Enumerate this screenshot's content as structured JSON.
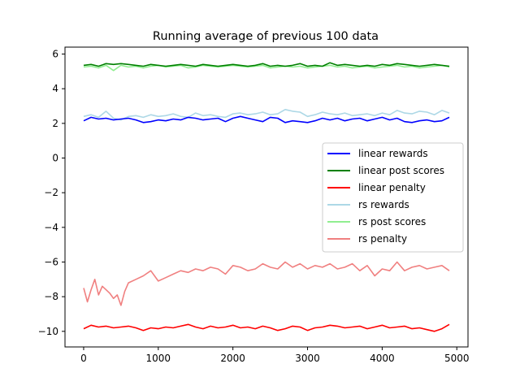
{
  "chart_data": {
    "type": "line",
    "title": "Running average of previous 100 data",
    "xlabel": "",
    "ylabel": "",
    "xlim": [
      -250,
      5150
    ],
    "ylim": [
      -10.9,
      6.4
    ],
    "xticks": [
      0,
      1000,
      2000,
      3000,
      4000,
      5000
    ],
    "yticks": [
      -10,
      -8,
      -6,
      -4,
      -2,
      0,
      2,
      4,
      6
    ],
    "grid": false,
    "legend_position": "center-right",
    "series": [
      {
        "name": "linear rewards",
        "color": "#0000ff",
        "x": [
          0,
          100,
          200,
          300,
          400,
          500,
          600,
          700,
          800,
          900,
          1000,
          1100,
          1200,
          1300,
          1400,
          1500,
          1600,
          1700,
          1800,
          1900,
          2000,
          2100,
          2200,
          2300,
          2400,
          2500,
          2600,
          2700,
          2800,
          2900,
          3000,
          3100,
          3200,
          3300,
          3400,
          3500,
          3600,
          3700,
          3800,
          3900,
          4000,
          4100,
          4200,
          4300,
          4400,
          4500,
          4600,
          4700,
          4800,
          4900
        ],
        "values": [
          2.15,
          2.35,
          2.25,
          2.3,
          2.2,
          2.25,
          2.3,
          2.2,
          2.05,
          2.1,
          2.2,
          2.15,
          2.25,
          2.2,
          2.35,
          2.3,
          2.2,
          2.25,
          2.3,
          2.1,
          2.3,
          2.4,
          2.3,
          2.2,
          2.1,
          2.35,
          2.3,
          2.05,
          2.15,
          2.1,
          2.05,
          2.15,
          2.3,
          2.2,
          2.3,
          2.15,
          2.25,
          2.3,
          2.15,
          2.25,
          2.35,
          2.2,
          2.3,
          2.1,
          2.05,
          2.15,
          2.2,
          2.1,
          2.15,
          2.35
        ]
      },
      {
        "name": "linear post scores",
        "color": "#008000",
        "x": [
          0,
          100,
          200,
          300,
          400,
          500,
          600,
          700,
          800,
          900,
          1000,
          1100,
          1200,
          1300,
          1400,
          1500,
          1600,
          1700,
          1800,
          1900,
          2000,
          2100,
          2200,
          2300,
          2400,
          2500,
          2600,
          2700,
          2800,
          2900,
          3000,
          3100,
          3200,
          3300,
          3400,
          3500,
          3600,
          3700,
          3800,
          3900,
          4000,
          4100,
          4200,
          4300,
          4400,
          4500,
          4600,
          4700,
          4800,
          4900
        ],
        "values": [
          5.35,
          5.4,
          5.3,
          5.45,
          5.4,
          5.45,
          5.4,
          5.35,
          5.3,
          5.4,
          5.35,
          5.3,
          5.35,
          5.4,
          5.35,
          5.3,
          5.4,
          5.35,
          5.3,
          5.35,
          5.4,
          5.35,
          5.3,
          5.35,
          5.45,
          5.3,
          5.35,
          5.3,
          5.35,
          5.45,
          5.3,
          5.35,
          5.3,
          5.5,
          5.35,
          5.4,
          5.35,
          5.3,
          5.35,
          5.3,
          5.4,
          5.35,
          5.45,
          5.4,
          5.35,
          5.3,
          5.35,
          5.4,
          5.35,
          5.3
        ]
      },
      {
        "name": "linear penalty",
        "color": "#ff0000",
        "x": [
          0,
          100,
          200,
          300,
          400,
          500,
          600,
          700,
          800,
          900,
          1000,
          1100,
          1200,
          1300,
          1400,
          1500,
          1600,
          1700,
          1800,
          1900,
          2000,
          2100,
          2200,
          2300,
          2400,
          2500,
          2600,
          2700,
          2800,
          2900,
          3000,
          3100,
          3200,
          3300,
          3400,
          3500,
          3600,
          3700,
          3800,
          3900,
          4000,
          4100,
          4200,
          4300,
          4400,
          4500,
          4600,
          4700,
          4800,
          4900
        ],
        "values": [
          -9.85,
          -9.65,
          -9.75,
          -9.7,
          -9.8,
          -9.75,
          -9.7,
          -9.8,
          -9.95,
          -9.8,
          -9.85,
          -9.75,
          -9.8,
          -9.7,
          -9.6,
          -9.75,
          -9.85,
          -9.7,
          -9.8,
          -9.75,
          -9.65,
          -9.8,
          -9.75,
          -9.85,
          -9.7,
          -9.8,
          -9.95,
          -9.85,
          -9.7,
          -9.75,
          -9.95,
          -9.8,
          -9.75,
          -9.65,
          -9.7,
          -9.8,
          -9.75,
          -9.7,
          -9.85,
          -9.75,
          -9.65,
          -9.8,
          -9.75,
          -9.7,
          -9.85,
          -9.8,
          -9.9,
          -10.0,
          -9.85,
          -9.6
        ]
      },
      {
        "name": "rs rewards",
        "color": "#add8e6",
        "x": [
          0,
          100,
          200,
          300,
          400,
          500,
          600,
          700,
          800,
          900,
          1000,
          1100,
          1200,
          1300,
          1400,
          1500,
          1600,
          1700,
          1800,
          1900,
          2000,
          2100,
          2200,
          2300,
          2400,
          2500,
          2600,
          2700,
          2800,
          2900,
          3000,
          3100,
          3200,
          3300,
          3400,
          3500,
          3600,
          3700,
          3800,
          3900,
          4000,
          4100,
          4200,
          4300,
          4400,
          4500,
          4600,
          4700,
          4800,
          4900
        ],
        "values": [
          2.4,
          2.5,
          2.35,
          2.7,
          2.3,
          2.2,
          2.4,
          2.45,
          2.35,
          2.5,
          2.4,
          2.45,
          2.55,
          2.4,
          2.35,
          2.6,
          2.45,
          2.5,
          2.4,
          2.35,
          2.55,
          2.6,
          2.5,
          2.55,
          2.65,
          2.5,
          2.55,
          2.8,
          2.7,
          2.65,
          2.4,
          2.5,
          2.65,
          2.55,
          2.5,
          2.6,
          2.45,
          2.5,
          2.55,
          2.45,
          2.6,
          2.5,
          2.75,
          2.6,
          2.55,
          2.7,
          2.65,
          2.5,
          2.75,
          2.6
        ]
      },
      {
        "name": "rs post scores",
        "color": "#90ee90",
        "x": [
          0,
          100,
          200,
          300,
          400,
          500,
          600,
          700,
          800,
          900,
          1000,
          1100,
          1200,
          1300,
          1400,
          1500,
          1600,
          1700,
          1800,
          1900,
          2000,
          2100,
          2200,
          2300,
          2400,
          2500,
          2600,
          2700,
          2800,
          2900,
          3000,
          3100,
          3200,
          3300,
          3400,
          3500,
          3600,
          3700,
          3800,
          3900,
          4000,
          4100,
          4200,
          4300,
          4400,
          4500,
          4600,
          4700,
          4800,
          4900
        ],
        "values": [
          5.25,
          5.3,
          5.2,
          5.35,
          5.05,
          5.35,
          5.25,
          5.3,
          5.2,
          5.3,
          5.35,
          5.25,
          5.3,
          5.35,
          5.2,
          5.25,
          5.35,
          5.3,
          5.25,
          5.3,
          5.35,
          5.3,
          5.25,
          5.3,
          5.35,
          5.2,
          5.25,
          5.3,
          5.25,
          5.3,
          5.2,
          5.25,
          5.3,
          5.35,
          5.25,
          5.3,
          5.2,
          5.25,
          5.3,
          5.2,
          5.25,
          5.3,
          5.35,
          5.25,
          5.3,
          5.2,
          5.25,
          5.3,
          5.35,
          5.25
        ]
      },
      {
        "name": "rs penalty",
        "color": "#f08080",
        "x": [
          0,
          50,
          100,
          150,
          200,
          250,
          300,
          350,
          400,
          450,
          500,
          550,
          600,
          700,
          800,
          900,
          1000,
          1100,
          1200,
          1300,
          1400,
          1500,
          1600,
          1700,
          1800,
          1900,
          2000,
          2100,
          2200,
          2300,
          2400,
          2500,
          2600,
          2700,
          2800,
          2900,
          3000,
          3100,
          3200,
          3300,
          3400,
          3500,
          3600,
          3700,
          3800,
          3900,
          4000,
          4100,
          4200,
          4300,
          4400,
          4500,
          4600,
          4700,
          4800,
          4900
        ],
        "values": [
          -7.5,
          -8.3,
          -7.6,
          -7.0,
          -7.9,
          -7.4,
          -7.6,
          -7.8,
          -8.1,
          -7.9,
          -8.5,
          -7.7,
          -7.2,
          -7.0,
          -6.8,
          -6.5,
          -7.1,
          -6.9,
          -6.7,
          -6.5,
          -6.6,
          -6.4,
          -6.5,
          -6.3,
          -6.4,
          -6.7,
          -6.2,
          -6.3,
          -6.5,
          -6.4,
          -6.1,
          -6.3,
          -6.4,
          -6.0,
          -6.3,
          -6.1,
          -6.4,
          -6.2,
          -6.3,
          -6.1,
          -6.4,
          -6.3,
          -6.1,
          -6.5,
          -6.2,
          -6.8,
          -6.4,
          -6.5,
          -6.0,
          -6.5,
          -6.3,
          -6.2,
          -6.4,
          -6.3,
          -6.2,
          -6.5
        ]
      }
    ]
  }
}
